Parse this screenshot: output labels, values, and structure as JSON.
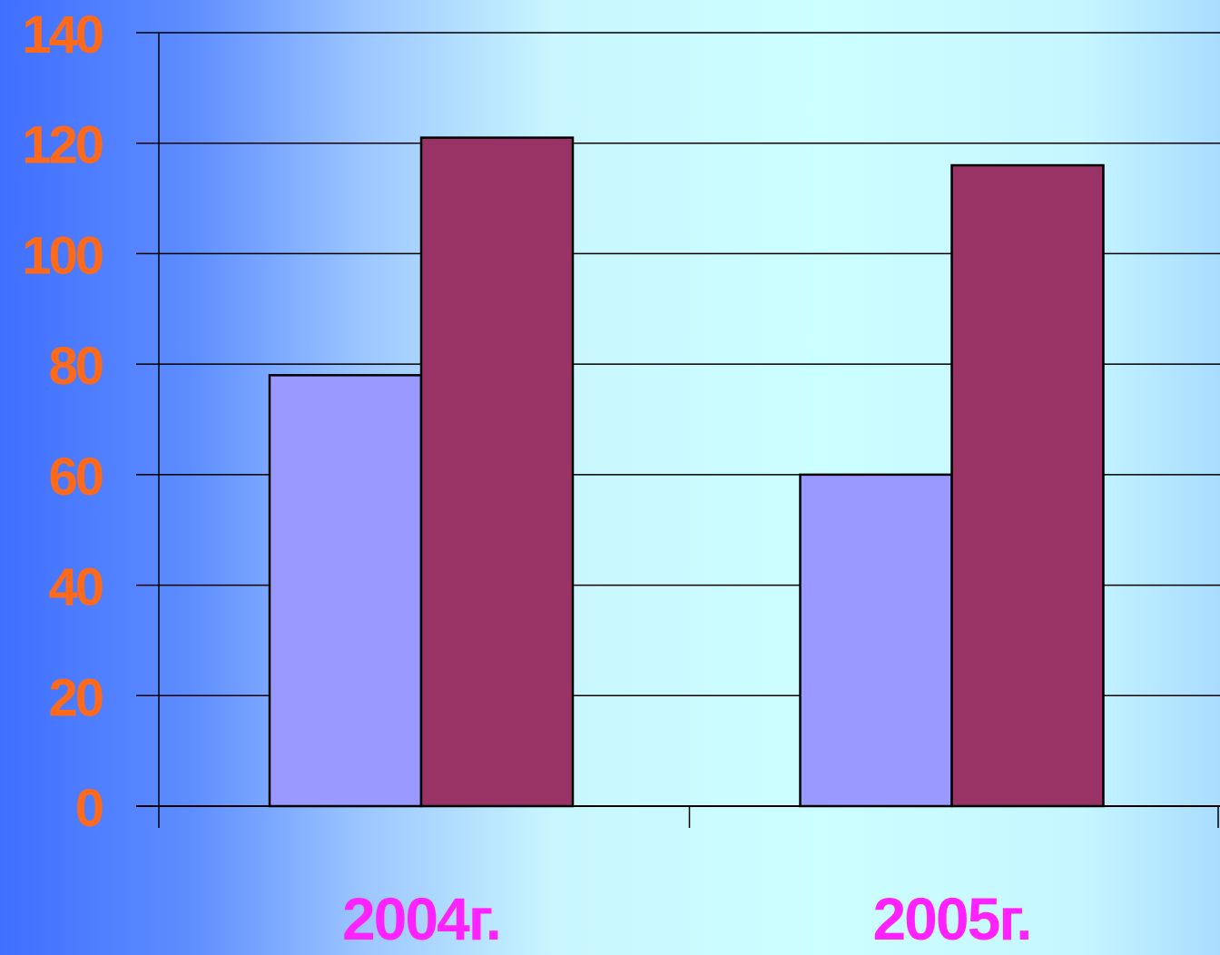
{
  "chart_data": {
    "type": "bar",
    "categories": [
      "2004г.",
      "2005г."
    ],
    "series": [
      {
        "values": [
          78,
          60
        ]
      },
      {
        "values": [
          121,
          116
        ]
      }
    ],
    "y_ticks": [
      "0",
      "20",
      "40",
      "60",
      "80",
      "100",
      "120",
      "140"
    ],
    "ylim": [
      0,
      140
    ],
    "grid": true,
    "legend": "none",
    "colors": {
      "series": [
        "#9999ff",
        "#993366"
      ],
      "y_tick_labels": "#ff6a1a",
      "x_tick_labels": "#ff22ff",
      "gridline": "#000000"
    }
  }
}
